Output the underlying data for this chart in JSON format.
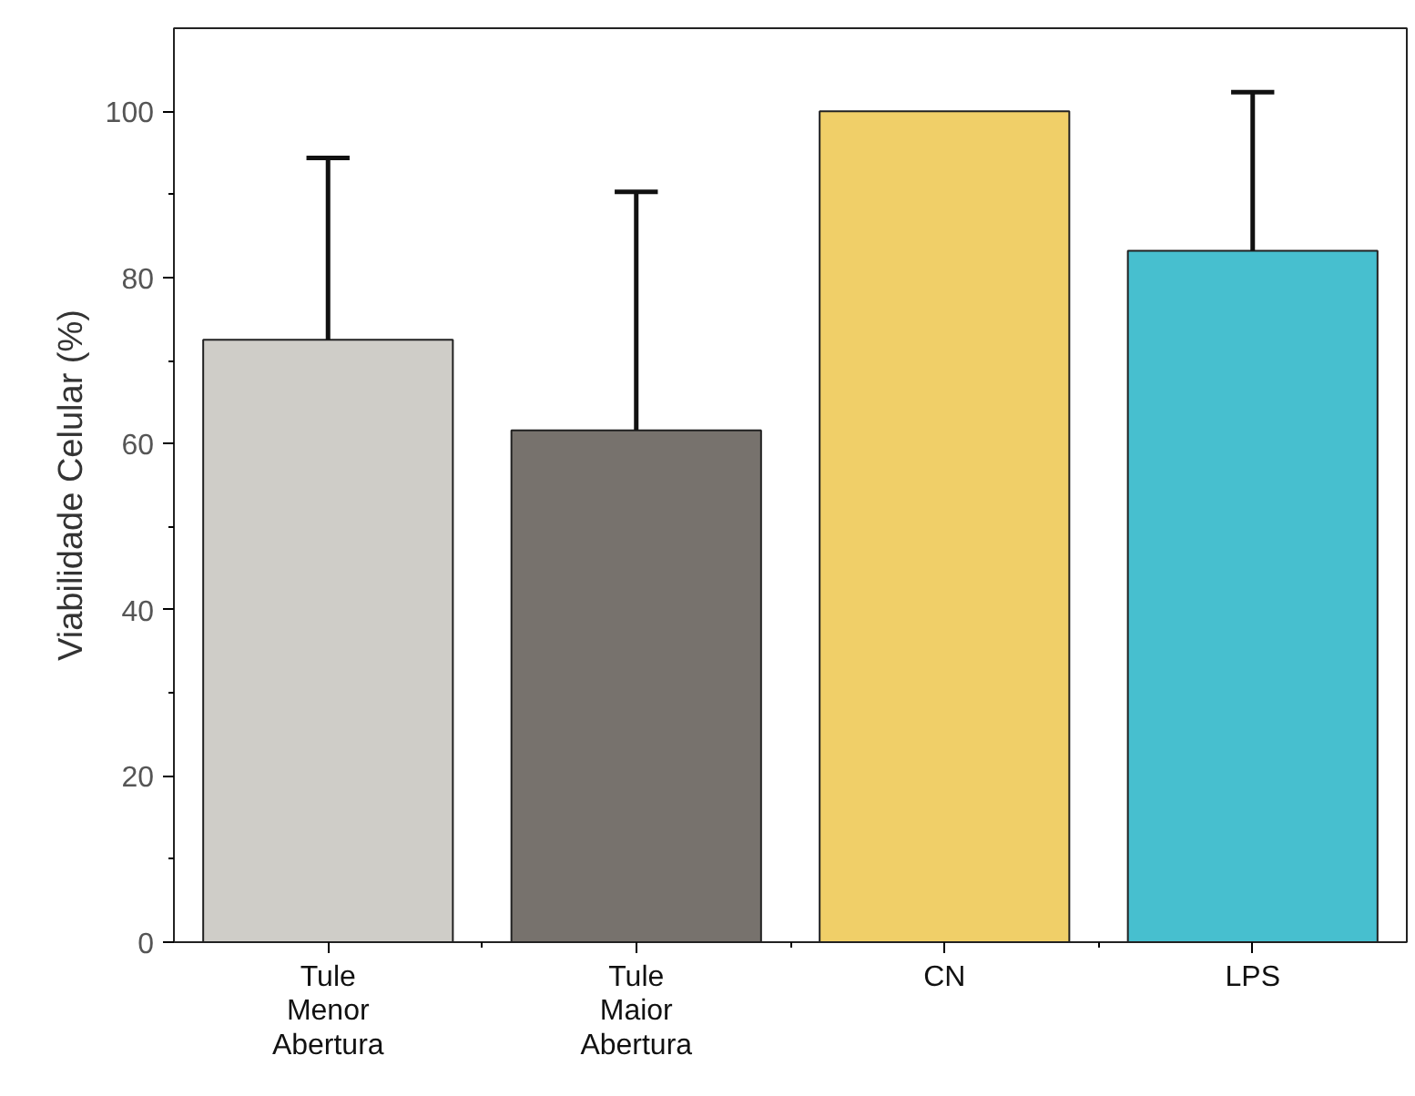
{
  "chart_data": {
    "type": "bar",
    "ylabel": "Viabilidade Celular (%)",
    "categories": [
      "Tule\nMenor\nAbertura",
      "Tule\nMaior\nAbertura",
      "CN",
      "LPS"
    ],
    "values": [
      72.5,
      61.6,
      100,
      83.2
    ],
    "colors": [
      "#cfcdc8",
      "#77726d",
      "#f0cf68",
      "#47bfcf"
    ],
    "errors": [
      [
        72.5,
        94.4
      ],
      [
        61.6,
        90.3
      ],
      null,
      [
        83.2,
        102.3
      ]
    ],
    "ylim": [
      0,
      110
    ],
    "yticks": [
      0,
      20,
      40,
      60,
      80,
      100
    ],
    "grid": false
  }
}
